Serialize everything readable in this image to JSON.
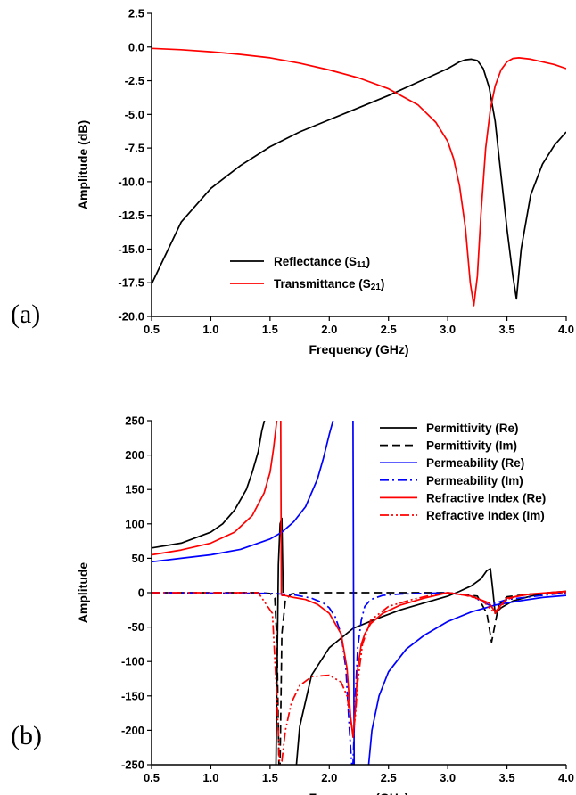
{
  "chart_data": [
    {
      "type": "line",
      "panel_label": "(a)",
      "xlabel": "Frequency (GHz)",
      "ylabel": "Amplitude (dB)",
      "xlim": [
        0.5,
        4.0
      ],
      "ylim": [
        -20.0,
        2.5
      ],
      "xticks": [
        "0.5",
        "1.0",
        "1.5",
        "2.0",
        "2.5",
        "3.0",
        "3.5",
        "4.0"
      ],
      "yticks": [
        "2.5",
        "0.0",
        "-2.5",
        "-5.0",
        "-7.5",
        "-10.0",
        "-12.5",
        "-15.0",
        "-17.5",
        "-20.0"
      ],
      "legend_position": "bottom-center",
      "series": [
        {
          "name": "Reflectance (S11)",
          "name_main": "Reflectance (S",
          "name_sub": "11",
          "name_end": ")",
          "color": "#000000",
          "dash": "solid",
          "x": [
            0.5,
            0.75,
            1.0,
            1.25,
            1.5,
            1.75,
            2.0,
            2.25,
            2.5,
            2.75,
            3.0,
            3.1,
            3.15,
            3.2,
            3.25,
            3.3,
            3.35,
            3.4,
            3.45,
            3.5,
            3.55,
            3.58,
            3.62,
            3.7,
            3.8,
            3.9,
            4.0
          ],
          "y": [
            -17.6,
            -13.0,
            -10.5,
            -8.8,
            -7.4,
            -6.3,
            -5.4,
            -4.5,
            -3.6,
            -2.6,
            -1.6,
            -1.1,
            -0.95,
            -0.9,
            -1.0,
            -1.6,
            -3.0,
            -5.5,
            -9.5,
            -13.5,
            -17.0,
            -18.7,
            -15.0,
            -11.0,
            -8.7,
            -7.3,
            -6.3
          ]
        },
        {
          "name": "Transmittance (S21)",
          "name_main": "Transmittance (S",
          "name_sub": "21",
          "name_end": ")",
          "color": "#ff0000",
          "dash": "solid",
          "x": [
            0.5,
            0.75,
            1.0,
            1.25,
            1.5,
            1.75,
            2.0,
            2.25,
            2.5,
            2.75,
            2.9,
            3.0,
            3.05,
            3.1,
            3.15,
            3.19,
            3.22,
            3.25,
            3.28,
            3.32,
            3.36,
            3.4,
            3.45,
            3.5,
            3.55,
            3.6,
            3.7,
            3.8,
            3.9,
            4.0
          ],
          "y": [
            -0.1,
            -0.2,
            -0.35,
            -0.55,
            -0.8,
            -1.2,
            -1.7,
            -2.3,
            -3.1,
            -4.3,
            -5.6,
            -7.0,
            -8.3,
            -10.3,
            -13.5,
            -17.5,
            -19.2,
            -17.0,
            -12.5,
            -7.5,
            -4.6,
            -2.9,
            -1.7,
            -1.1,
            -0.85,
            -0.8,
            -0.9,
            -1.1,
            -1.3,
            -1.6
          ]
        }
      ]
    },
    {
      "type": "line",
      "panel_label": "(b)",
      "xlabel": "Frequnecy (GHz)",
      "ylabel": "Amplitude",
      "xlim": [
        0.5,
        4.0
      ],
      "ylim": [
        -250,
        250
      ],
      "xticks": [
        "0.5",
        "1.0",
        "1.5",
        "2.0",
        "2.5",
        "3.0",
        "3.5",
        "4.0"
      ],
      "yticks": [
        "250",
        "200",
        "150",
        "100",
        "50",
        "0",
        "-50",
        "-100",
        "-150",
        "-200",
        "-250"
      ],
      "legend_position": "top-right",
      "series": [
        {
          "name": "Permittivity (Re)",
          "color": "#000000",
          "dash": "solid",
          "segments": [
            {
              "x": [
                0.5,
                0.75,
                1.0,
                1.1,
                1.2,
                1.3,
                1.35,
                1.4,
                1.43,
                1.46
              ],
              "y": [
                65,
                72,
                88,
                100,
                120,
                150,
                175,
                205,
                235,
                255
              ]
            },
            {
              "x": [
                1.55,
                1.57,
                1.585,
                1.6,
                1.61
              ],
              "y": [
                -250,
                40,
                100,
                108,
                0
              ]
            },
            {
              "x": [
                1.72,
                1.75,
                1.85,
                2.0,
                2.2,
                2.4,
                2.6,
                2.8,
                3.0,
                3.1,
                3.2,
                3.28,
                3.33,
                3.36,
                3.38,
                3.4,
                3.45,
                3.55,
                3.7,
                3.85,
                4.0
              ],
              "y": [
                -255,
                -195,
                -120,
                -80,
                -52,
                -38,
                -25,
                -15,
                -5,
                2,
                10,
                20,
                32,
                35,
                5,
                -30,
                -22,
                -12,
                -5,
                0,
                2
              ]
            }
          ]
        },
        {
          "name": "Permittivity (Im)",
          "color": "#000000",
          "dash": "dash",
          "segments": [
            {
              "x": [
                0.5,
                1.4,
                1.5,
                1.54,
                1.56,
                1.575,
                1.585,
                1.6,
                1.63,
                1.68,
                1.75,
                2.0,
                2.5,
                3.0,
                3.25,
                3.33,
                3.37,
                3.4,
                3.43,
                3.5,
                3.7,
                4.0
              ],
              "y": [
                0,
                0,
                -1,
                -8,
                -80,
                -250,
                -250,
                -60,
                -10,
                -2,
                0,
                0,
                0,
                0,
                -5,
                -30,
                -72,
                -45,
                -18,
                -6,
                -2,
                0
              ]
            }
          ]
        },
        {
          "name": "Permeability (Re)",
          "color": "#0000ff",
          "dash": "solid",
          "segments": [
            {
              "x": [
                0.5,
                0.75,
                1.0,
                1.25,
                1.5,
                1.6,
                1.7,
                1.8,
                1.9,
                1.95,
                2.0,
                2.04
              ],
              "y": [
                45,
                50,
                55,
                63,
                78,
                88,
                103,
                125,
                165,
                195,
                230,
                255
              ]
            },
            {
              "x": [
                2.2,
                2.205,
                2.21
              ],
              "y": [
                255,
                0,
                -250
              ]
            },
            {
              "x": [
                2.33,
                2.36,
                2.42,
                2.5,
                2.65,
                2.8,
                3.0,
                3.2,
                3.4,
                3.6,
                3.8,
                4.0
              ],
              "y": [
                -255,
                -200,
                -150,
                -115,
                -82,
                -62,
                -42,
                -28,
                -18,
                -12,
                -7,
                -4
              ]
            }
          ]
        },
        {
          "name": "Permeability (Im)",
          "color": "#0000ff",
          "dash": "dashdot",
          "segments": [
            {
              "x": [
                0.5,
                1.5,
                1.7,
                1.85,
                1.95,
                2.0,
                2.05,
                2.1,
                2.14,
                2.17,
                2.19,
                2.2,
                2.22,
                2.24,
                2.27,
                2.3,
                2.35,
                2.45,
                2.6,
                2.8,
                3.0,
                3.2,
                3.35,
                3.5,
                4.0
              ],
              "y": [
                0,
                -1,
                -3,
                -8,
                -15,
                -22,
                -35,
                -60,
                -110,
                -200,
                -250,
                -250,
                -150,
                -80,
                -40,
                -20,
                -10,
                -4,
                -2,
                -1,
                0,
                -5,
                -18,
                -10,
                0
              ]
            }
          ]
        },
        {
          "name": "Refractive Index (Re)",
          "color": "#ff0000",
          "dash": "solid",
          "segments": [
            {
              "x": [
                0.5,
                0.75,
                1.0,
                1.2,
                1.35,
                1.45,
                1.5,
                1.53,
                1.55,
                1.56,
                1.57
              ],
              "y": [
                55,
                62,
                72,
                88,
                112,
                145,
                175,
                210,
                240,
                255,
                255
              ]
            },
            {
              "x": [
                1.59,
                1.595,
                1.6,
                1.62,
                1.65,
                1.7,
                1.8,
                1.9,
                2.0,
                2.1,
                2.15,
                2.18,
                2.2,
                2.22,
                2.24,
                2.27,
                2.3,
                2.35,
                2.45,
                2.6,
                2.8,
                3.0,
                3.2,
                3.35,
                3.4,
                3.45,
                3.5,
                3.7,
                4.0
              ],
              "y": [
                255,
                0,
                -4,
                -4,
                -5,
                -7,
                -10,
                -17,
                -30,
                -60,
                -110,
                -180,
                -210,
                -170,
                -110,
                -75,
                -60,
                -45,
                -30,
                -18,
                -8,
                0,
                -5,
                -15,
                -28,
                -18,
                -8,
                -2,
                2
              ]
            }
          ]
        },
        {
          "name": "Refractive Index (Im)",
          "color": "#ff0000",
          "dash": "dashdotdot",
          "segments": [
            {
              "x": [
                0.5,
                1.4,
                1.52,
                1.56,
                1.58,
                1.6,
                1.63,
                1.68,
                1.75,
                1.85,
                2.0,
                2.1,
                2.15,
                2.18,
                2.2,
                2.22,
                2.24,
                2.28,
                2.35,
                2.5,
                2.7,
                2.85,
                3.0,
                3.1,
                3.2,
                3.3,
                3.35,
                3.4,
                3.45,
                3.5,
                3.6,
                3.8,
                4.0
              ],
              "y": [
                0,
                0,
                -30,
                -160,
                -250,
                -245,
                -200,
                -160,
                -135,
                -122,
                -120,
                -130,
                -150,
                -185,
                -205,
                -180,
                -130,
                -75,
                -40,
                -20,
                -10,
                -4,
                0,
                -2,
                -6,
                -12,
                -22,
                -30,
                -20,
                -10,
                -4,
                -1,
                0
              ]
            }
          ]
        }
      ]
    }
  ]
}
